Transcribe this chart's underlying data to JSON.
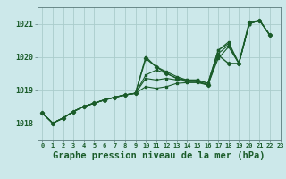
{
  "title": "Graphe pression niveau de la mer (hPa)",
  "bg_color": "#cce8ea",
  "grid_color": "#aacccc",
  "line_color": "#1a5c2a",
  "xlim": [
    -0.5,
    23
  ],
  "ylim": [
    1017.5,
    1021.5
  ],
  "yticks": [
    1018,
    1019,
    1020,
    1021
  ],
  "xticks": [
    0,
    1,
    2,
    3,
    4,
    5,
    6,
    7,
    8,
    9,
    10,
    11,
    12,
    13,
    14,
    15,
    16,
    17,
    18,
    19,
    20,
    21,
    22,
    23
  ],
  "series": [
    [
      1018.3,
      1018.0,
      1018.15,
      1018.35,
      1018.5,
      1018.6,
      1018.7,
      1018.78,
      1018.85,
      1018.9,
      1020.0,
      1019.7,
      1019.55,
      1019.4,
      1019.3,
      1019.3,
      1019.2,
      1020.2,
      1020.45,
      1019.8,
      1021.0,
      1021.1,
      1020.65,
      null
    ],
    [
      1018.3,
      1018.0,
      1018.15,
      1018.35,
      1018.5,
      1018.6,
      1018.7,
      1018.78,
      1018.85,
      1018.9,
      1019.45,
      1019.6,
      1019.5,
      1019.35,
      1019.3,
      1019.3,
      1019.2,
      1020.2,
      1020.4,
      1019.8,
      1021.0,
      1021.1,
      1020.65,
      null
    ],
    [
      1018.3,
      1018.0,
      1018.15,
      1018.35,
      1018.5,
      1018.6,
      1018.7,
      1018.78,
      1018.85,
      1018.9,
      1019.35,
      1019.3,
      1019.35,
      1019.3,
      1019.25,
      1019.25,
      1019.15,
      1020.1,
      1020.35,
      1019.8,
      1021.0,
      1021.1,
      1020.65,
      null
    ],
    [
      1018.3,
      1018.0,
      1018.15,
      1018.35,
      1018.5,
      1018.6,
      1018.7,
      1018.78,
      1018.85,
      1018.9,
      1019.1,
      1019.05,
      1019.1,
      1019.2,
      1019.22,
      1019.22,
      1019.15,
      1019.95,
      1020.3,
      1019.8,
      1021.0,
      1021.1,
      1020.65,
      null
    ]
  ],
  "main_series": [
    1018.3,
    1018.0,
    1018.15,
    1018.35,
    1018.5,
    1018.6,
    1018.7,
    1018.78,
    1018.85,
    1018.9,
    1019.95,
    1019.7,
    1019.5,
    1019.35,
    1019.27,
    1019.27,
    1019.15,
    1020.05,
    1019.8,
    1019.8,
    1021.05,
    1021.1,
    1020.65,
    null
  ],
  "ylabel_fontsize": 6,
  "xlabel_fontsize": 7.5
}
